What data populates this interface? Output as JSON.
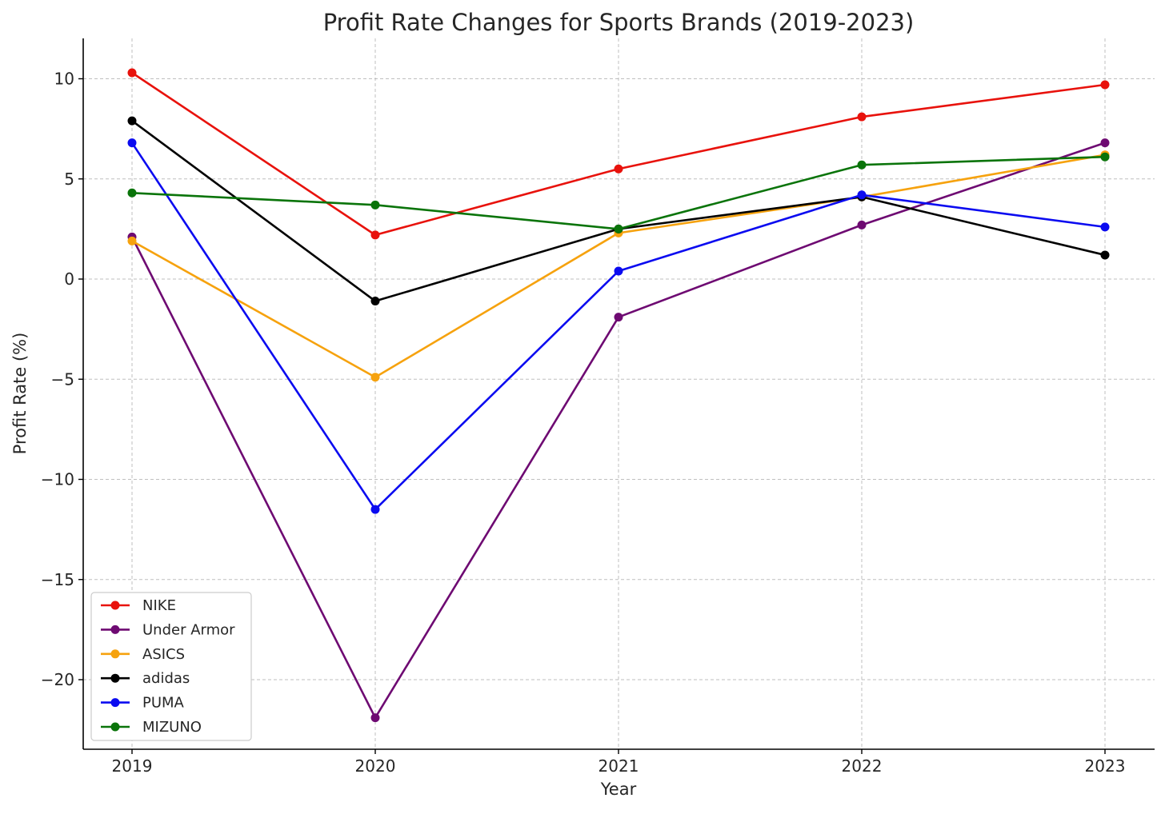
{
  "chart_data": {
    "type": "line",
    "title": "Profit Rate Changes for Sports Brands (2019-2023)",
    "xlabel": "Year",
    "ylabel": "Profit Rate (%)",
    "x": [
      "2019",
      "2020",
      "2021",
      "2022",
      "2023"
    ],
    "ylim": [
      -23.5,
      12
    ],
    "yticks": [
      10,
      5,
      0,
      -5,
      -10,
      -15,
      -20
    ],
    "ytick_labels": [
      "10",
      "5",
      "0",
      "−5",
      "−10",
      "−15",
      "−20"
    ],
    "grid": true,
    "legend_position": "lower-left",
    "series": [
      {
        "name": "NIKE",
        "color": "#e8120c",
        "values": [
          10.3,
          2.2,
          5.5,
          8.1,
          9.7
        ]
      },
      {
        "name": "Under Armor",
        "color": "#6e0a72",
        "values": [
          2.1,
          -21.9,
          -1.9,
          2.7,
          6.8
        ]
      },
      {
        "name": "ASICS",
        "color": "#f6a20e",
        "values": [
          1.9,
          -4.9,
          2.3,
          4.1,
          6.2
        ]
      },
      {
        "name": "adidas",
        "color": "#000000",
        "values": [
          7.9,
          -1.1,
          2.5,
          4.1,
          1.2
        ]
      },
      {
        "name": "PUMA",
        "color": "#0b0bf0",
        "values": [
          6.8,
          -11.5,
          0.4,
          4.2,
          2.6
        ]
      },
      {
        "name": "MIZUNO",
        "color": "#0a740a",
        "values": [
          4.3,
          3.7,
          2.5,
          5.7,
          6.1
        ]
      }
    ]
  }
}
